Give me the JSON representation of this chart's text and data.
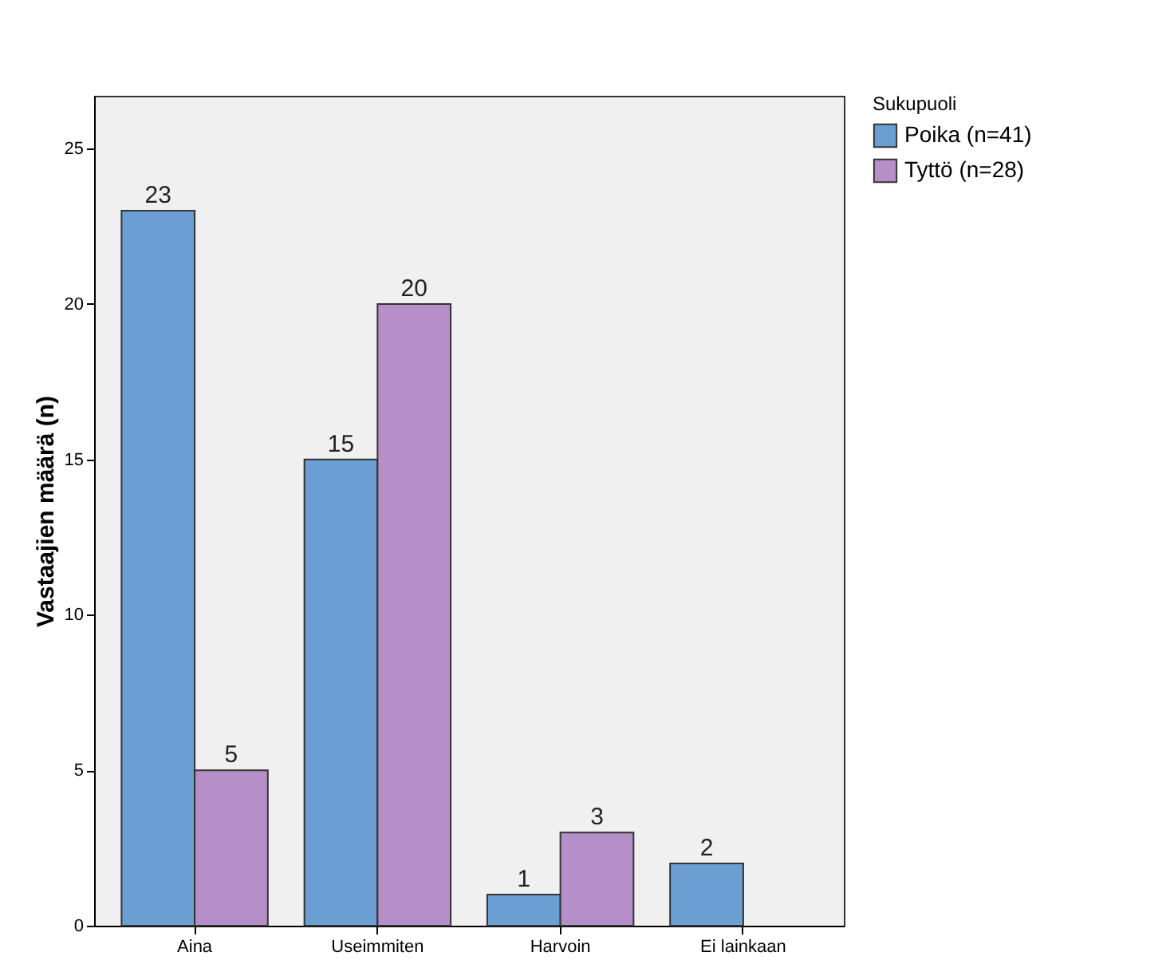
{
  "chart_data": {
    "type": "bar",
    "ylabel": "Vastaajien määrä (n)",
    "legend_title": "Sukupuoli",
    "categories": [
      "Aina",
      "Useimmiten",
      "Harvoin",
      "Ei lainkaan"
    ],
    "series": [
      {
        "name": "Poika (n=41)",
        "color": "#6b9fd3",
        "values": [
          23,
          15,
          1,
          2
        ]
      },
      {
        "name": "Tyttö (n=28)",
        "color": "#b68fc9",
        "values": [
          5,
          20,
          3,
          null
        ]
      }
    ],
    "ylim": [
      0,
      26.7
    ],
    "yticks": [
      0,
      5,
      10,
      15,
      20,
      25
    ],
    "grid": false,
    "legend": "top right",
    "data_labels": true
  }
}
